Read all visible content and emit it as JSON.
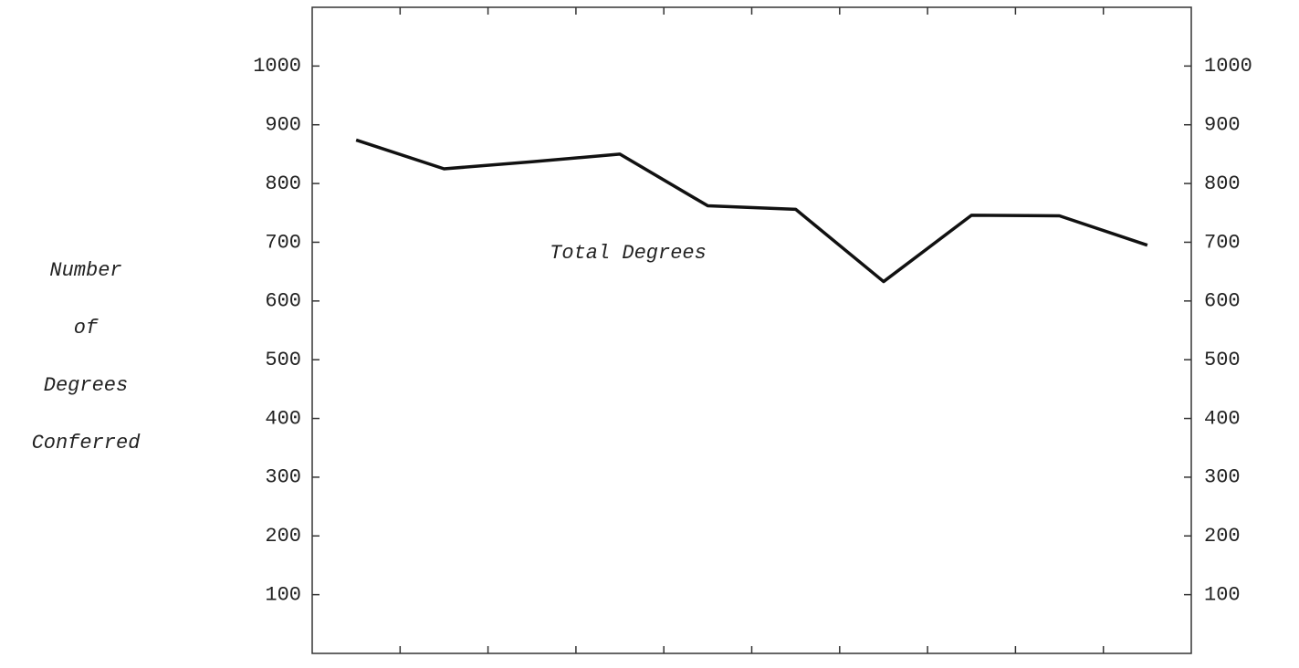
{
  "chart_data": {
    "type": "line",
    "annotation": "Total Degrees",
    "ylabel": [
      "Number",
      "of",
      "Degrees",
      "Conferred"
    ],
    "categories": [
      null,
      null,
      null,
      null,
      null,
      null,
      null,
      null,
      null,
      null
    ],
    "values": [
      874,
      825,
      837,
      850,
      762,
      756,
      633,
      746,
      745,
      695
    ],
    "color": "#111111",
    "ylim": [
      0,
      1100
    ],
    "yticks": [
      100,
      200,
      300,
      400,
      500,
      600,
      700,
      800,
      900,
      1000
    ],
    "y2lim": [
      0,
      1100
    ],
    "y2ticks": [
      100,
      200,
      300,
      400,
      500,
      600,
      700,
      800,
      900,
      1000
    ],
    "grid": false
  }
}
